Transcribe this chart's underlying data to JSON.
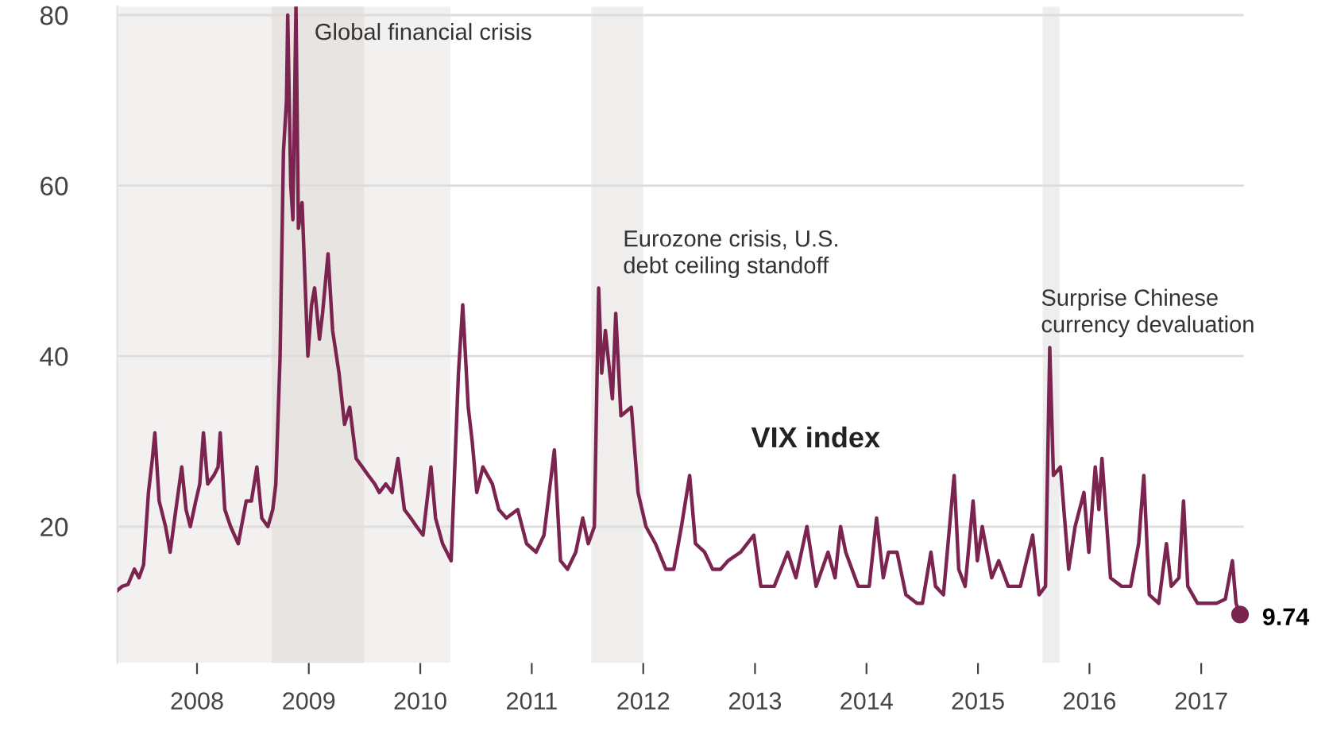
{
  "chart_data": {
    "type": "line",
    "x": [
      "2007-04-15",
      "2007-05-01",
      "2007-05-20",
      "2007-06-10",
      "2007-06-25",
      "2007-07-10",
      "2007-07-26",
      "2007-08-08",
      "2007-08-16",
      "2007-08-30",
      "2007-09-20",
      "2007-10-05",
      "2007-10-20",
      "2007-11-12",
      "2007-11-26",
      "2007-12-10",
      "2007-12-28",
      "2008-01-10",
      "2008-01-22",
      "2008-02-05",
      "2008-02-25",
      "2008-03-10",
      "2008-03-17",
      "2008-04-01",
      "2008-04-20",
      "2008-05-15",
      "2008-06-10",
      "2008-06-27",
      "2008-07-15",
      "2008-07-31",
      "2008-08-20",
      "2008-09-05",
      "2008-09-15",
      "2008-09-29",
      "2008-10-10",
      "2008-10-20",
      "2008-10-24",
      "2008-11-03",
      "2008-11-10",
      "2008-11-20",
      "2008-11-28",
      "2008-12-10",
      "2008-12-29",
      "2009-01-10",
      "2009-01-20",
      "2009-02-05",
      "2009-02-15",
      "2009-03-05",
      "2009-03-20",
      "2009-04-10",
      "2009-04-28",
      "2009-05-15",
      "2009-06-05",
      "2009-06-25",
      "2009-07-15",
      "2009-08-05",
      "2009-08-20",
      "2009-09-10",
      "2009-10-01",
      "2009-10-20",
      "2009-11-10",
      "2009-12-01",
      "2009-12-20",
      "2010-01-10",
      "2010-02-05",
      "2010-02-20",
      "2010-03-15",
      "2010-04-12",
      "2010-05-06",
      "2010-05-20",
      "2010-06-07",
      "2010-06-20",
      "2010-07-05",
      "2010-07-25",
      "2010-08-25",
      "2010-09-15",
      "2010-10-10",
      "2010-11-16",
      "2010-12-15",
      "2011-01-15",
      "2011-02-10",
      "2011-03-16",
      "2011-04-05",
      "2011-04-28",
      "2011-05-25",
      "2011-06-17",
      "2011-07-05",
      "2011-07-25",
      "2011-08-08",
      "2011-08-18",
      "2011-08-30",
      "2011-09-22",
      "2011-10-03",
      "2011-10-20",
      "2011-11-23",
      "2011-12-15",
      "2012-01-10",
      "2012-02-10",
      "2012-03-15",
      "2012-04-10",
      "2012-05-05",
      "2012-06-01",
      "2012-06-20",
      "2012-07-20",
      "2012-08-15",
      "2012-09-10",
      "2012-10-05",
      "2012-11-15",
      "2012-12-28",
      "2013-01-20",
      "2013-03-05",
      "2013-04-18",
      "2013-05-15",
      "2013-06-20",
      "2013-07-20",
      "2013-08-28",
      "2013-09-20",
      "2013-10-08",
      "2013-10-25",
      "2013-12-05",
      "2014-01-10",
      "2014-02-03",
      "2014-02-25",
      "2014-03-14",
      "2014-04-11",
      "2014-05-10",
      "2014-06-15",
      "2014-07-03",
      "2014-07-31",
      "2014-08-15",
      "2014-09-10",
      "2014-10-15",
      "2014-10-30",
      "2014-11-20",
      "2014-12-16",
      "2014-12-30",
      "2015-01-15",
      "2015-02-15",
      "2015-03-10",
      "2015-04-10",
      "2015-05-20",
      "2015-06-29",
      "2015-07-20",
      "2015-08-10",
      "2015-08-24",
      "2015-09-05",
      "2015-09-28",
      "2015-10-25",
      "2015-11-15",
      "2015-12-14",
      "2015-12-30",
      "2016-01-20",
      "2016-02-01",
      "2016-02-11",
      "2016-03-10",
      "2016-04-15",
      "2016-05-15",
      "2016-06-10",
      "2016-06-27",
      "2016-07-15",
      "2016-08-15",
      "2016-09-09",
      "2016-09-25",
      "2016-10-20",
      "2016-11-04",
      "2016-11-18",
      "2016-12-20",
      "2017-01-20",
      "2017-02-20",
      "2017-03-21",
      "2017-04-13",
      "2017-04-25",
      "2017-05-08"
    ],
    "series": [
      {
        "name": "VIX index",
        "color": "#7b2450",
        "values": [
          12.5,
          13,
          13.2,
          15,
          14,
          15.5,
          24,
          28,
          31,
          23,
          20,
          17,
          21,
          27,
          22,
          20,
          23,
          25,
          31,
          25,
          26,
          27,
          31,
          22,
          20,
          18,
          23,
          23,
          27,
          21,
          20,
          22,
          25,
          40,
          64,
          70,
          80,
          60,
          56,
          81,
          55,
          58,
          40,
          46,
          48,
          42,
          45,
          52,
          43,
          38,
          32,
          34,
          28,
          27,
          26,
          25,
          24,
          25,
          24,
          28,
          22,
          21,
          20,
          19,
          27,
          21,
          18,
          16,
          38,
          46,
          34,
          30,
          24,
          27,
          25,
          22,
          21,
          22,
          18,
          17,
          19,
          29,
          16,
          15,
          17,
          21,
          18,
          20,
          48,
          38,
          43,
          35,
          45,
          33,
          34,
          24,
          20,
          18,
          15,
          15,
          20,
          26,
          18,
          17,
          15,
          15,
          16,
          17,
          19,
          13,
          13,
          17,
          14,
          20,
          13,
          17,
          14,
          20,
          17,
          13,
          13,
          21,
          14,
          17,
          17,
          12,
          11,
          11,
          17,
          13,
          12,
          26,
          15,
          13,
          23,
          16,
          20,
          14,
          16,
          13,
          13,
          19,
          12,
          13,
          41,
          26,
          27,
          15,
          20,
          24,
          17,
          27,
          22,
          28,
          14,
          13,
          13,
          18,
          26,
          12,
          11,
          18,
          13,
          14,
          23,
          13,
          11,
          11,
          11,
          11.5,
          16,
          11,
          9.7
        ]
      }
    ],
    "ylim": [
      4,
      81
    ],
    "yticks": [
      20,
      40,
      60,
      80
    ],
    "xlim": [
      "2007-04-15",
      "2017-05-20"
    ],
    "xticks": [
      "2008",
      "2009",
      "2010",
      "2011",
      "2012",
      "2013",
      "2014",
      "2015",
      "2016",
      "2017"
    ],
    "grid": "y",
    "marker": "none",
    "line_style": "solid",
    "bands": [
      {
        "axis": "x",
        "from": "2007-04-15",
        "to": "2010-04-10",
        "color": "#f3f1ef"
      },
      {
        "axis": "x",
        "from": "2008-09-01",
        "to": "2009-07-01",
        "color": "#e7e4e2"
      },
      {
        "axis": "x",
        "from": "2011-07-15",
        "to": "2012-01-01",
        "color": "#f0eeec"
      },
      {
        "axis": "x",
        "from": "2015-08-01",
        "to": "2015-09-25",
        "color": "#eeeeee"
      }
    ],
    "annotations": [
      "Global financial crisis",
      "Eurozone crisis, U.S.\ndebt ceiling standoff",
      "Surprise Chinese\ncurrency devaluation",
      {
        "text": "9.74",
        "x": "2017-05-08",
        "y": 9.7
      }
    ]
  }
}
